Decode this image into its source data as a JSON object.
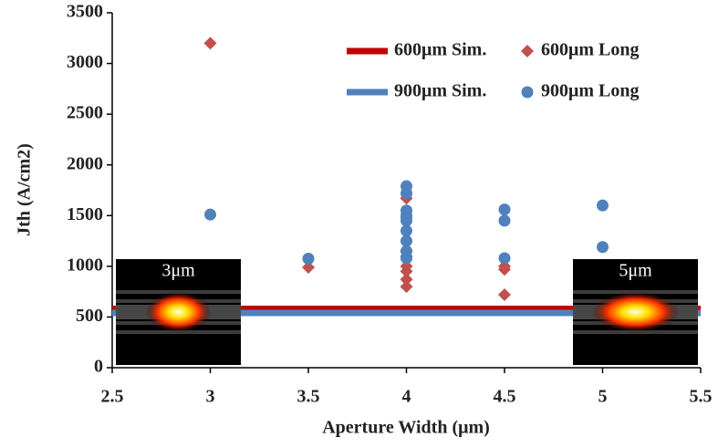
{
  "chart_data": {
    "type": "scatter",
    "xlabel": "Aperture Width (μm)",
    "ylabel": "Jth (A/cm2)",
    "xlim": [
      2.5,
      5.5
    ],
    "xticks": [
      2.5,
      3,
      3.5,
      4,
      4.5,
      5,
      5.5
    ],
    "ylim": [
      0,
      3500
    ],
    "yticks": [
      0,
      500,
      1000,
      1500,
      2000,
      2500,
      3000,
      3500
    ],
    "legend": "upper right",
    "annotations": [
      "3μm",
      "5μm"
    ],
    "series": [
      {
        "name": "600μm Sim.",
        "marker": "line",
        "color": "#c00000",
        "x": [
          2.5,
          5.5
        ],
        "values": [
          580,
          580
        ]
      },
      {
        "name": "600μm Long",
        "marker": "diamond",
        "color": "#c0504d",
        "x": [
          3,
          3.5,
          4,
          4,
          4,
          4,
          4,
          4,
          4,
          4,
          4.5,
          4.5,
          4.5
        ],
        "values": [
          3200,
          990,
          1670,
          1480,
          1150,
          1100,
          1000,
          950,
          870,
          800,
          1000,
          970,
          720
        ]
      },
      {
        "name": "900μm Sim.",
        "marker": "line",
        "color": "#4f81bd",
        "x": [
          2.5,
          5.5
        ],
        "values": [
          540,
          540
        ]
      },
      {
        "name": "900μm Long",
        "marker": "circle",
        "color": "#4f81bd",
        "x": [
          3,
          3.5,
          4,
          4,
          4,
          4,
          4,
          4,
          4,
          4,
          4,
          4.5,
          4.5,
          4.5,
          5,
          5
        ],
        "values": [
          1510,
          1075,
          1790,
          1720,
          1550,
          1500,
          1450,
          1350,
          1250,
          1150,
          1080,
          1560,
          1450,
          1080,
          1600,
          1190
        ]
      }
    ]
  }
}
